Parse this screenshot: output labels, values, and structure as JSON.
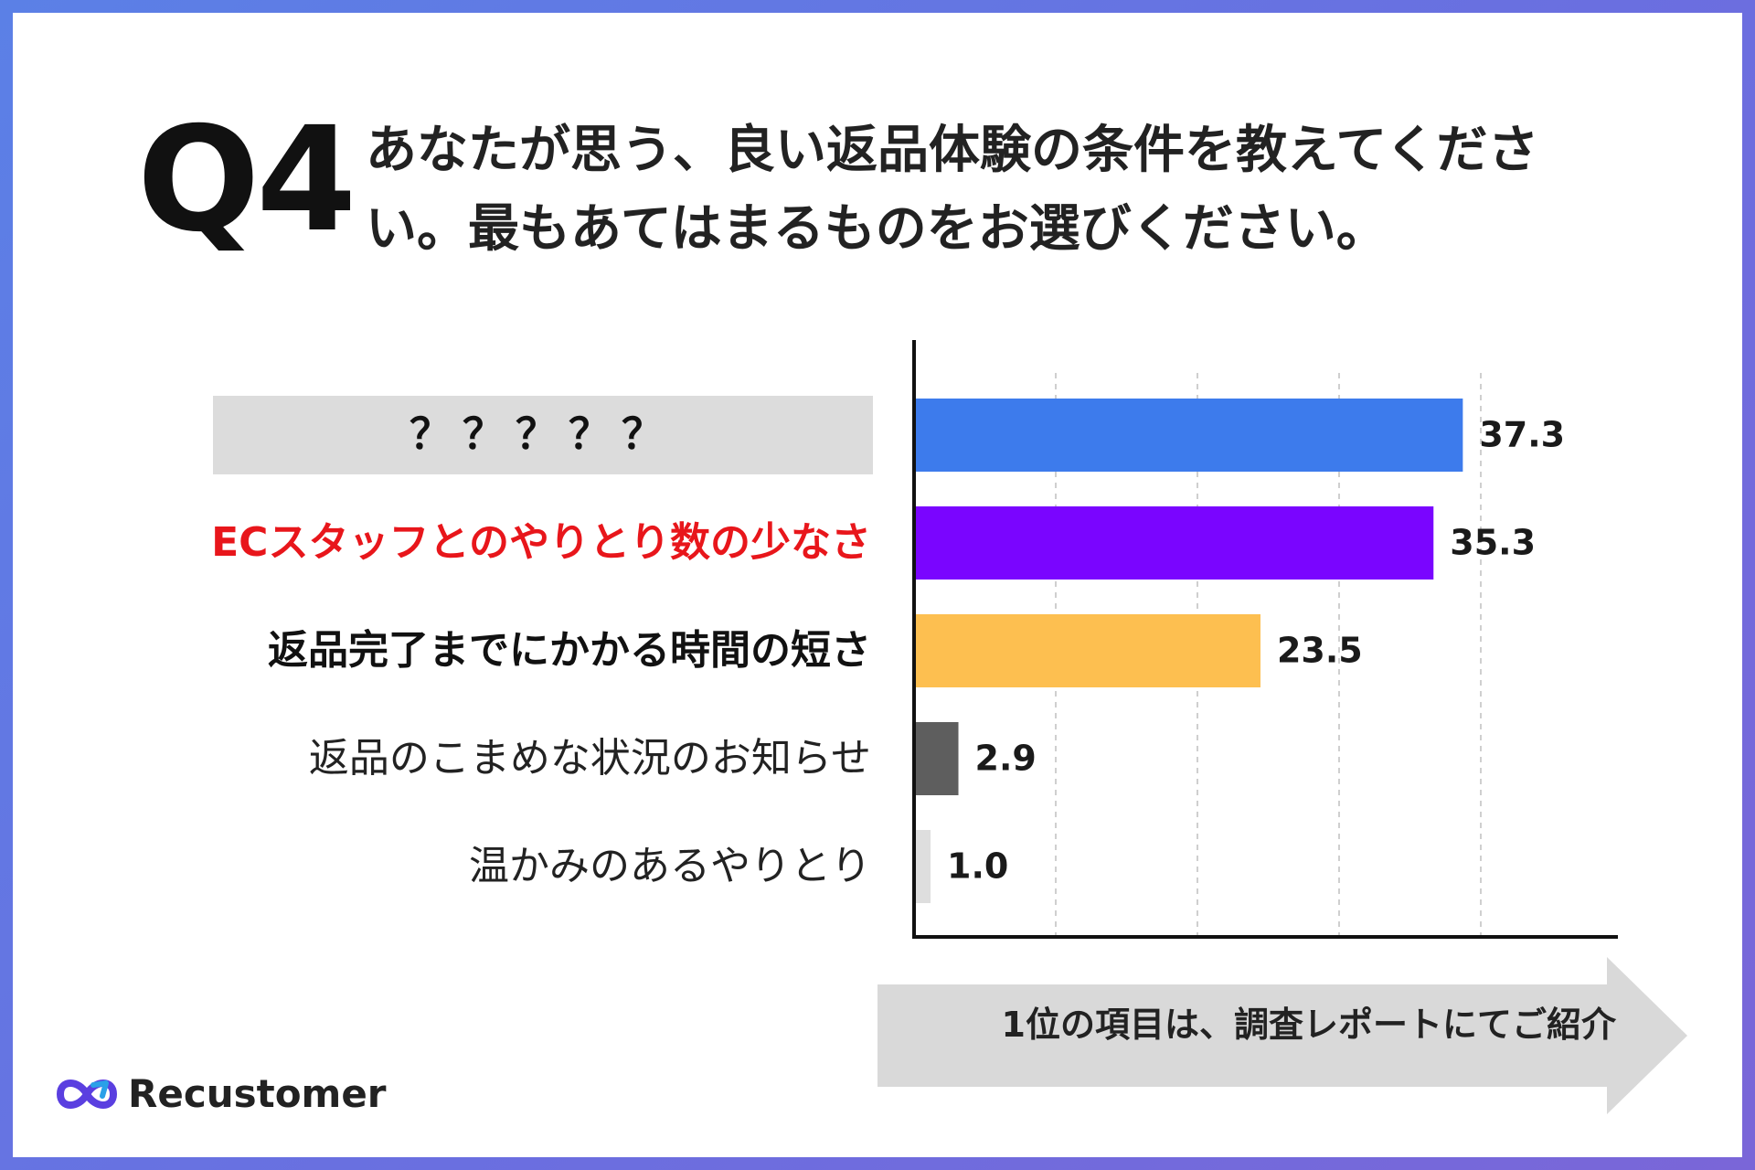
{
  "question": {
    "number": "Q4",
    "text": "あなたが思う、良い返品体験の条件を教えてください。最もあてはまるものをお選びください。"
  },
  "chart_data": {
    "type": "bar",
    "orientation": "horizontal",
    "categories": [
      "？？？？？",
      "ECスタッフとのやりとり数の少なさ",
      "返品完了までにかかる時間の短さ",
      "返品のこまめな状況のお知らせ",
      "温かみのあるやりとり"
    ],
    "values": [
      37.3,
      35.3,
      23.5,
      2.9,
      1.0
    ],
    "value_labels": [
      "37.3",
      "35.3",
      "23.5",
      "2.9",
      "1.0"
    ],
    "bar_colors": [
      "#3d7bec",
      "#7a05ff",
      "#fdbf50",
      "#5e5e5e",
      "#dedede"
    ],
    "label_colors": [
      "#111111",
      "#e8161b",
      "#111111",
      "#222222",
      "#222222"
    ],
    "label_weights": [
      "bold",
      "bold",
      "bold",
      "normal",
      "normal"
    ],
    "hidden_label_background": "#dcdcdc",
    "xlim": [
      0,
      48
    ],
    "grid": true,
    "title": "",
    "xlabel": "",
    "ylabel": ""
  },
  "footer": {
    "arrow_text": "1位の項目は、調査レポートにてご紹介"
  },
  "brand": {
    "name": "Recustomer",
    "logo_icon": "infinity-arrow-icon",
    "colors": [
      "#5a3fe0",
      "#2aa0e8"
    ]
  }
}
